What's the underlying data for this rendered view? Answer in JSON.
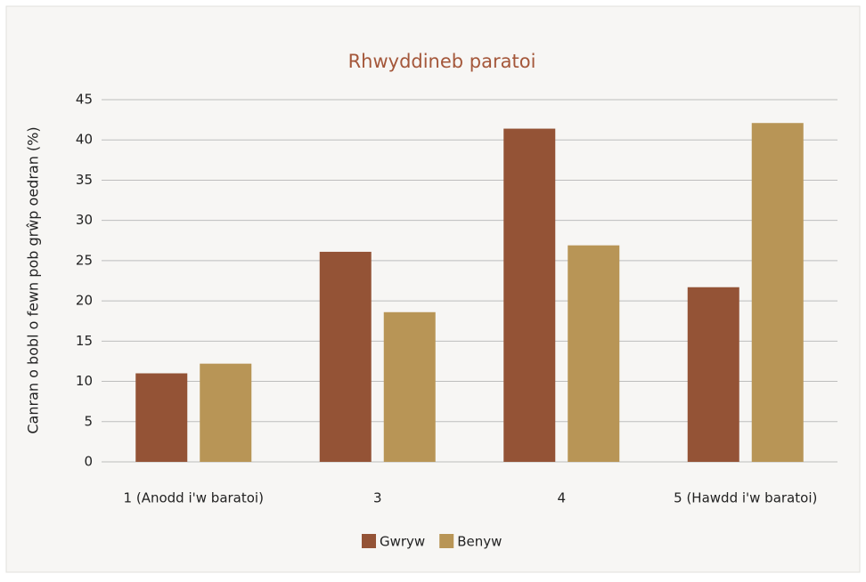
{
  "chart_data": {
    "type": "bar",
    "title": "Rhwyddineb paratoi",
    "y_label": "Canran o bobl o fewn pob grŵp oedran (%)",
    "categories": [
      "1 (Anodd i'w baratoi)",
      "3",
      "4",
      "5 (Hawdd i'w baratoi)"
    ],
    "series": [
      {
        "name": "Gwryw",
        "color": "#945336",
        "values": [
          11,
          26.1,
          41.4,
          21.7
        ]
      },
      {
        "name": "Benyw",
        "color": "#b89556",
        "values": [
          12.2,
          18.6,
          26.9,
          42.1
        ]
      }
    ],
    "ylim": [
      0,
      45
    ],
    "yticks": [
      0,
      5,
      10,
      15,
      20,
      25,
      30,
      35,
      40,
      45
    ],
    "grid": true,
    "legend": "bottom"
  }
}
